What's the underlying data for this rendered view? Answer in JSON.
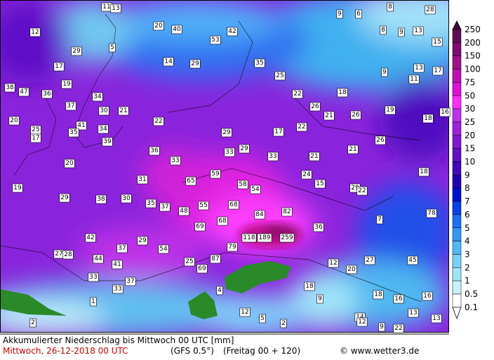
{
  "map": {
    "title": "Akkumulierter Niederschlag bis Mittwoch 00 UTC [mm]",
    "date": "Mittwoch, 26-12-2018  00 UTC",
    "model": "(GFS 0.5°)",
    "run": "(Freitag 00 + 120)",
    "credit": "© www.wetter3.de",
    "scale_ticks": [
      250,
      200,
      150,
      100,
      75,
      50,
      30,
      25,
      20,
      15,
      10,
      9,
      8,
      7,
      6,
      5,
      4,
      3,
      2,
      1,
      0.5,
      0.1
    ],
    "scale_colors": [
      "#3c0838",
      "#5c0e54",
      "#7e0a72",
      "#a0108c",
      "#c40cb4",
      "#e010dc",
      "#ff2cff",
      "#c030f0",
      "#a020e0",
      "#8018d0",
      "#6010c8",
      "#4008c0",
      "#2000b8",
      "#0010d8",
      "#0840f0",
      "#1870f8",
      "#3098f8",
      "#50b8f8",
      "#78d0f8",
      "#a0e4f8",
      "#c8f2fa",
      "#ffffff"
    ],
    "stations": [
      11,
      13,
      12,
      20,
      40,
      42,
      53,
      29,
      5,
      9,
      6,
      8,
      28,
      8,
      9,
      13,
      15,
      17,
      14,
      29,
      35,
      25,
      9,
      13,
      17,
      11,
      38,
      47,
      36,
      19,
      34,
      22,
      18,
      37,
      30,
      21,
      26,
      21,
      26,
      19,
      16,
      20,
      41,
      34,
      22,
      29,
      17,
      22,
      18,
      25,
      35,
      39,
      26,
      17,
      33,
      29,
      36,
      33,
      21,
      21,
      20,
      33,
      24,
      18,
      19,
      31,
      65,
      59,
      58,
      54,
      15,
      29,
      22,
      29,
      38,
      30,
      35,
      37,
      48,
      55,
      68,
      84,
      82,
      7,
      78,
      68,
      69,
      36,
      118,
      189,
      259,
      42,
      29,
      37,
      54,
      79,
      27,
      28,
      44,
      41,
      25,
      87,
      69,
      12,
      27,
      20,
      45,
      33,
      37,
      33,
      18,
      4,
      9,
      18,
      16,
      16,
      1,
      12,
      5,
      2,
      13,
      14,
      12,
      9,
      13,
      2,
      22
    ]
  }
}
